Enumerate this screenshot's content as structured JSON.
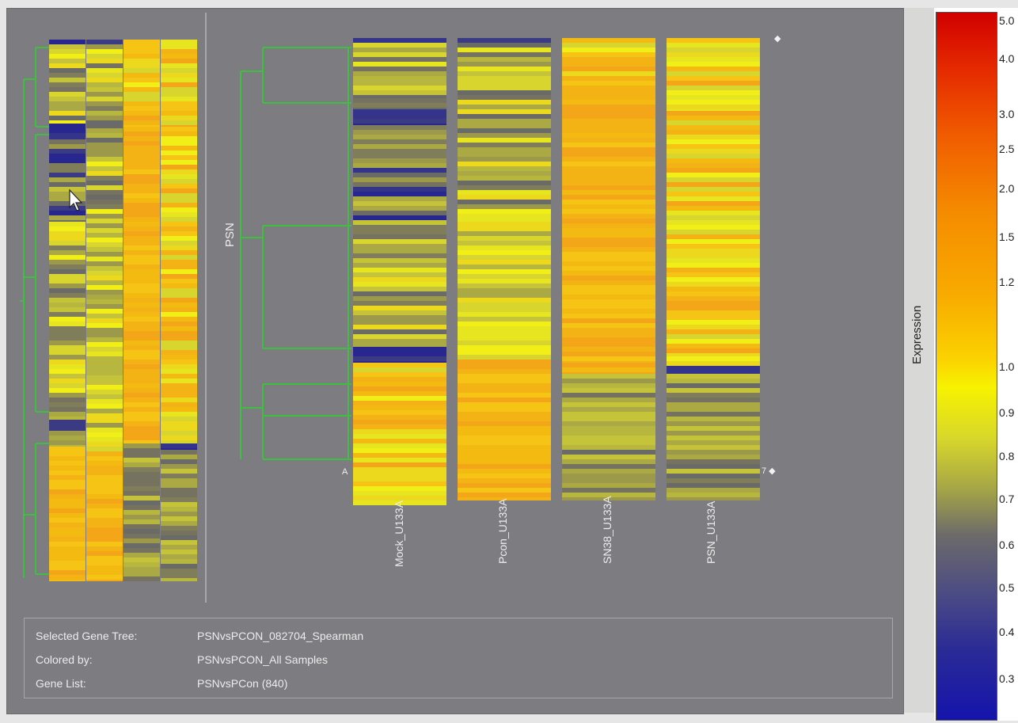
{
  "colors": {
    "background": "#7d7c80",
    "tree": "#3fbf3f",
    "scale_high": "#d10000",
    "scale_mid": "#f7f200",
    "scale_low": "#1414ac"
  },
  "main": {
    "side_label": "PSN",
    "columns": [
      {
        "label": "Mock_U133A"
      },
      {
        "label": "Pcon_U133A"
      },
      {
        "label": "SN38_U133A"
      },
      {
        "label": "PSN_U133A"
      }
    ],
    "markers": {
      "top_right": "◆",
      "bottom_left": "A",
      "bottom_right": "7 ◆"
    }
  },
  "scale": {
    "title": "Expression",
    "ticks": [
      "5.0",
      "4.0",
      "3.0",
      "2.5",
      "2.0",
      "1.5",
      "1.2",
      "1.0",
      "0.9",
      "0.8",
      "0.7",
      "0.6",
      "0.5",
      "0.4",
      "0.3"
    ]
  },
  "info": {
    "rows": [
      {
        "label": "Selected Gene Tree:",
        "value": "PSNvsPCON_082704_Spearman"
      },
      {
        "label": "Colored by:",
        "value": "PSNvsPCON_All Samples"
      },
      {
        "label": "Gene List:",
        "value": "PSNvsPCon (840)"
      }
    ]
  }
}
